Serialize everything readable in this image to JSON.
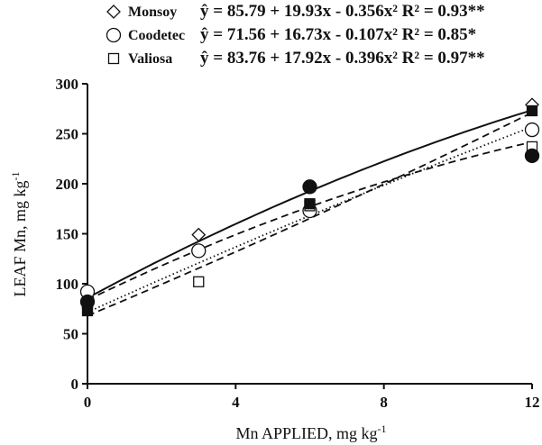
{
  "chart_data": {
    "type": "scatter",
    "xlabel": "Mn APPLIED, mg kg",
    "xlabel_sup": "-1",
    "ylabel": "LEAF Mn, mg kg",
    "ylabel_sup": "-1",
    "xlim": [
      0,
      12
    ],
    "ylim": [
      0,
      300
    ],
    "xticks": [
      0,
      4,
      8,
      12
    ],
    "yticks": [
      0,
      50,
      100,
      150,
      200,
      250,
      300
    ],
    "xtick_labels": [
      "0",
      "4",
      "8",
      "12"
    ],
    "ytick_labels": [
      "0",
      "50",
      "100",
      "150",
      "200",
      "250",
      "300"
    ],
    "grid": false,
    "legend_position": "top",
    "x": [
      0,
      3,
      6,
      12
    ],
    "series": [
      {
        "name": "Monsoy",
        "marker": "diamond-open",
        "line": "solid",
        "values": [
          83,
          149,
          197,
          279
        ],
        "equation": "ŷ = 85.79 + 19.93x - 0.356x² R² = 0.93**",
        "coefficients": [
          85.79,
          19.93,
          -0.356
        ]
      },
      {
        "name": "Coodetec",
        "marker": "circle-open",
        "line": "dotted",
        "values": [
          92,
          133,
          173,
          254
        ],
        "equation": "ŷ = 71.56 + 16.73x - 0.107x² R² = 0.85*",
        "coefficients": [
          71.56,
          16.73,
          -0.107
        ]
      },
      {
        "name": "Valiosa",
        "marker": "square-open",
        "line": "dashed",
        "values": [
          80,
          102,
          178,
          237
        ],
        "equation": "ŷ = 83.76 + 17.92x - 0.396x² R² = 0.97**",
        "coefficients": [
          83.76,
          17.92,
          -0.396
        ]
      }
    ],
    "extra_points": [
      {
        "marker": "circle-filled",
        "x": [
          0,
          6,
          12
        ],
        "values": [
          82,
          197,
          228
        ]
      },
      {
        "marker": "square-filled",
        "x": [
          0,
          6,
          12
        ],
        "values": [
          73,
          180,
          273
        ]
      }
    ],
    "extra_curve": {
      "line": "dashed",
      "coefficients": [
        68.0,
        15.5,
        0.12
      ]
    }
  }
}
